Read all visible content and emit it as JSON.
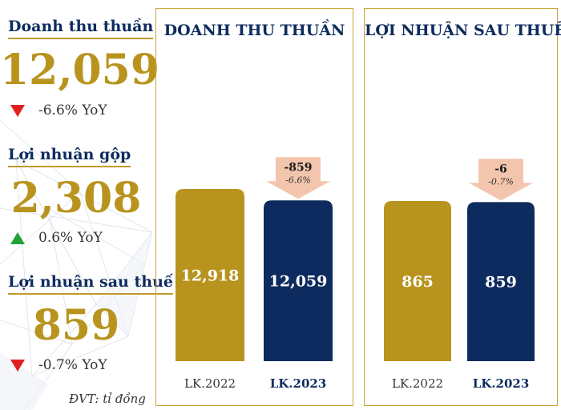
{
  "kpis": [
    {
      "title": "Doanh thu thuần",
      "value": "12,059",
      "yoy": "-6.6% YoY",
      "direction": "down"
    },
    {
      "title": "Lợi nhuận gộp",
      "value": "2,308",
      "yoy": "0.6% YoY",
      "direction": "up"
    },
    {
      "title": "Lợi nhuận sau thuế",
      "value": "859",
      "yoy": "-0.7% YoY",
      "direction": "down"
    }
  ],
  "unit_note": "ĐVT: tỉ đồng",
  "colors": {
    "gold": "#b8941f",
    "navy": "#0d2b5e",
    "arrow": "#f4c5ad",
    "down": "#e02020",
    "up": "#22a33a"
  },
  "chart_data": [
    {
      "type": "bar",
      "title": "DOANH THU THUẦN",
      "categories": [
        "LK.2022",
        "LK.2023"
      ],
      "values": [
        12918,
        12059
      ],
      "value_labels": [
        "12,918",
        "12,059"
      ],
      "change": {
        "value": "-859",
        "pct": "-6.6%"
      }
    },
    {
      "type": "bar",
      "title": "LỢI NHUẬN SAU THUẾ",
      "categories": [
        "LK.2022",
        "LK.2023"
      ],
      "values": [
        865,
        859
      ],
      "value_labels": [
        "865",
        "859"
      ],
      "change": {
        "value": "-6",
        "pct": "-0.7%"
      }
    }
  ]
}
